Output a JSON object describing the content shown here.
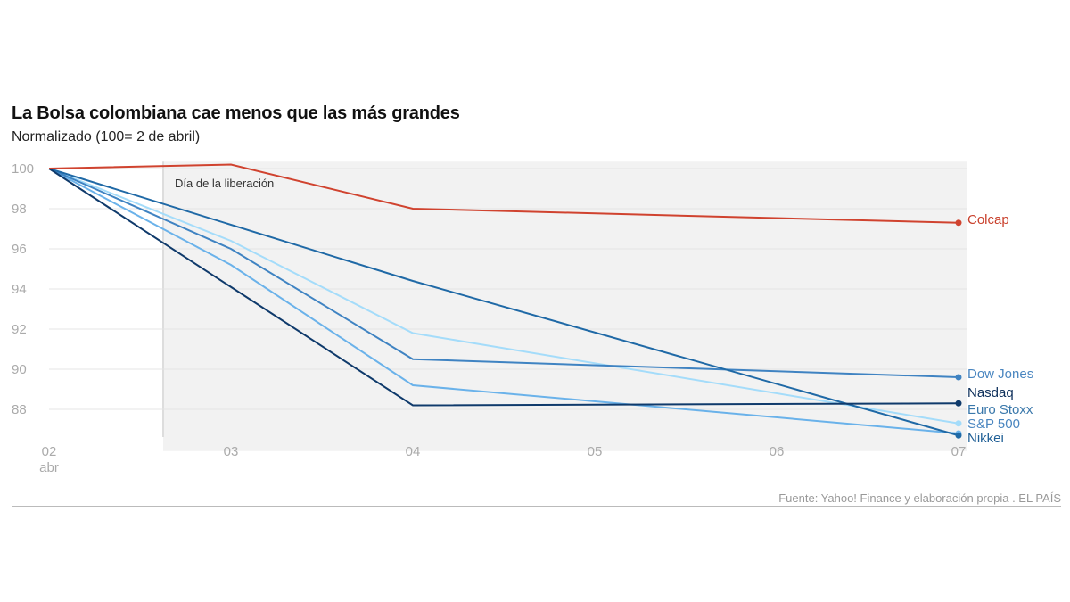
{
  "chart_data": {
    "type": "line",
    "title": "La Bolsa colombiana cae menos que las más grandes",
    "subtitle": "Normalizado (100= 2 de abril)",
    "x": [
      "02",
      "03",
      "04",
      "05",
      "06",
      "07"
    ],
    "x_sublabel": "abr",
    "ylim": [
      86.5,
      100.3
    ],
    "yticks": [
      100,
      98,
      96,
      94,
      92,
      90,
      88
    ],
    "grid": true,
    "annotation": {
      "label": "Día de la liberación",
      "shaded_from": "03",
      "shaded_to": "07"
    },
    "series": [
      {
        "name": "Colcap",
        "color": "#d0432f",
        "values": [
          100,
          100.2,
          98.0,
          null,
          null,
          97.3
        ]
      },
      {
        "name": "Dow Jones",
        "color": "#3f83c2",
        "values": [
          100,
          96.0,
          90.5,
          null,
          null,
          89.6
        ]
      },
      {
        "name": "Nasdaq",
        "color": "#0f3a6b",
        "values": [
          100,
          94.1,
          88.2,
          null,
          null,
          88.3
        ]
      },
      {
        "name": "Euro Stoxx",
        "color": "#6ab2ea",
        "values": [
          100,
          95.2,
          89.2,
          null,
          null,
          86.8
        ]
      },
      {
        "name": "S&P 500",
        "color": "#a4dcfa",
        "values": [
          100,
          96.4,
          91.8,
          null,
          null,
          87.3
        ]
      },
      {
        "name": "Nikkei",
        "color": "#1f69a6",
        "values": [
          100,
          null,
          94.4,
          null,
          null,
          86.7
        ]
      }
    ],
    "label_colors": {
      "Colcap": "#c9402c",
      "Dow Jones": "#4a86c0",
      "Nasdaq": "#0d2f5a",
      "Euro Stoxx": "#3a78ab",
      "S&P 500": "#4a86c0",
      "Nikkei": "#1f5f96"
    }
  },
  "source": "Fuente: Yahoo! Finance y elaboración propia . EL PAÍS"
}
